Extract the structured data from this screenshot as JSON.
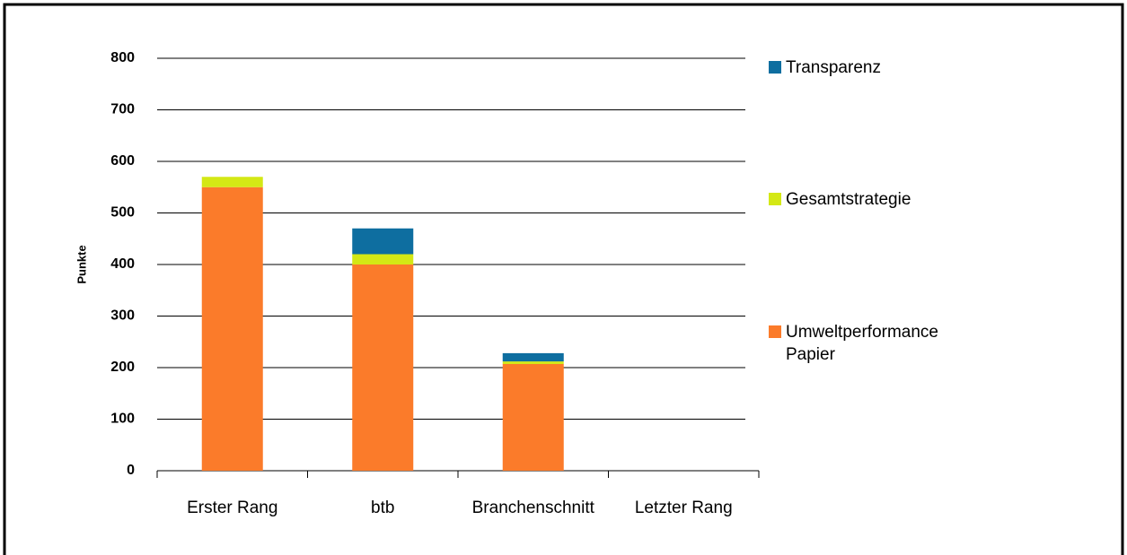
{
  "chart_data": {
    "type": "bar",
    "stacked": true,
    "ylabel": "Punkte",
    "categories": [
      "Erster Rang",
      "btb",
      "Branchenschnitt",
      "Letzter Rang"
    ],
    "series": [
      {
        "name": "Umweltperformance Papier",
        "color": "#fb7b2a",
        "values": [
          550,
          400,
          207,
          0
        ]
      },
      {
        "name": "Gesamtstrategie",
        "color": "#d4e815",
        "values": [
          20,
          20,
          5,
          0
        ]
      },
      {
        "name": "Transparenz",
        "color": "#0e6ea0",
        "values": [
          0,
          50,
          16,
          0
        ]
      }
    ],
    "ylim": [
      0,
      800
    ],
    "yticks": [
      0,
      100,
      200,
      300,
      400,
      500,
      600,
      700,
      800
    ],
    "grid": true
  }
}
